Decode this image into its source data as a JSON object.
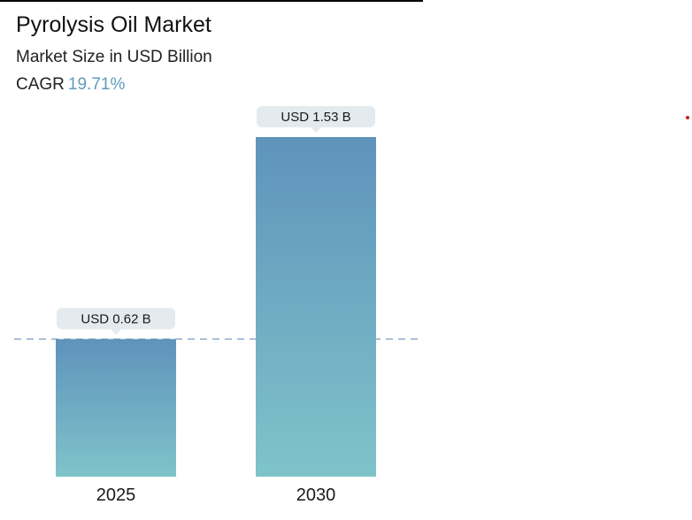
{
  "header": {
    "title": "Pyrolysis Oil Market",
    "subtitle": "Market Size in USD Billion",
    "cagr_label": "CAGR",
    "cagr_value": "19.71%"
  },
  "chart_data": {
    "type": "bar",
    "categories": [
      "2025",
      "2030"
    ],
    "values": [
      0.62,
      1.53
    ],
    "value_labels": [
      "USD 0.62 B",
      "USD 1.53 B"
    ],
    "title": "Pyrolysis Oil Market",
    "subtitle": "Market Size in USD Billion",
    "ylim": [
      0,
      1.53
    ],
    "grid": false,
    "reference_line": "dashed line at 2025 value",
    "colors": {
      "bar_top": "#5f93bb",
      "bar_bottom": "#7fc3ca",
      "label_bg": "#e3ebee",
      "dash": "#7f9ec0"
    }
  }
}
